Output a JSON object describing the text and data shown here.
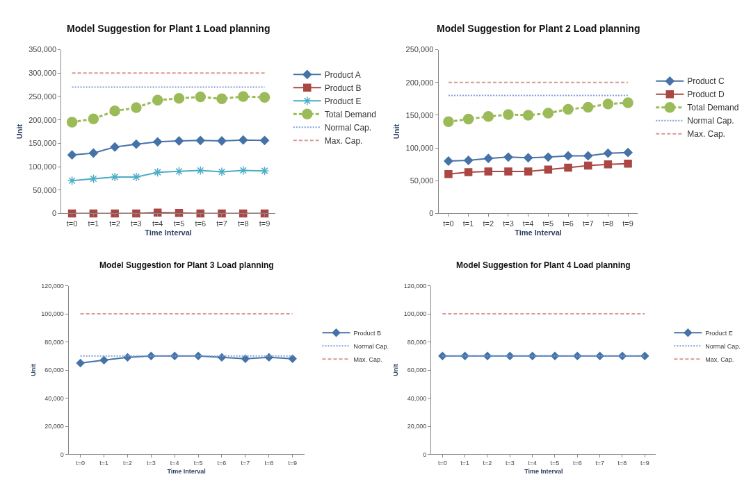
{
  "chart_data": [
    {
      "type": "line",
      "title": "Model Suggestion for Plant 1 Load planning",
      "xlabel": "Time Interval",
      "ylabel": "Unit",
      "categories": [
        "t=0",
        "t=1",
        "t=2",
        "t=3",
        "t=4",
        "t=5",
        "t=6",
        "t=7",
        "t=8",
        "t=9"
      ],
      "ylim": [
        0,
        350000
      ],
      "yticks": [
        {
          "value": 0,
          "label": "0"
        },
        {
          "value": 50000,
          "label": "50,000"
        },
        {
          "value": 100000,
          "label": "100,000"
        },
        {
          "value": 150000,
          "label": "150,000"
        },
        {
          "value": 200000,
          "label": "200,000"
        },
        {
          "value": 250000,
          "label": "250,000"
        },
        {
          "value": 300000,
          "label": "300,000"
        },
        {
          "value": 350000,
          "label": "350,000"
        }
      ],
      "grid": false,
      "legend": "right",
      "series": [
        {
          "name": "Product A",
          "color": "#4572a7",
          "marker": "diamond",
          "line_style": "solid",
          "values": [
            125000,
            129000,
            142000,
            148000,
            153000,
            155000,
            156000,
            155000,
            157000,
            156000
          ]
        },
        {
          "name": "Product B",
          "color": "#aa4643",
          "marker": "square",
          "line_style": "solid",
          "values": [
            0,
            0,
            0,
            0,
            2000,
            1000,
            0,
            0,
            0,
            0
          ]
        },
        {
          "name": "Product E",
          "color": "#4bacc6",
          "marker": "cross",
          "line_style": "solid",
          "values": [
            70000,
            74000,
            78000,
            78000,
            88000,
            90000,
            92000,
            89000,
            92000,
            91000
          ]
        },
        {
          "name": "Total Demand",
          "color": "#9bbb59",
          "marker": "circle",
          "line_style": "dashed",
          "values": [
            195000,
            202000,
            219000,
            226000,
            242000,
            246000,
            249000,
            245000,
            250000,
            248000
          ]
        },
        {
          "name": "Normal Cap.",
          "color": "#7f9fd8",
          "marker": "none",
          "line_style": "dotted",
          "values": [
            270000,
            270000,
            270000,
            270000,
            270000,
            270000,
            270000,
            270000,
            270000,
            270000
          ]
        },
        {
          "name": "Max. Cap.",
          "color": "#d99694",
          "marker": "none",
          "line_style": "dashed",
          "values": [
            300000,
            300000,
            300000,
            300000,
            300000,
            300000,
            300000,
            300000,
            300000,
            300000
          ]
        }
      ]
    },
    {
      "type": "line",
      "title": "Model Suggestion for Plant 2 Load planning",
      "xlabel": "Time Interval",
      "ylabel": "Unit",
      "categories": [
        "t=0",
        "t=1",
        "t=2",
        "t=3",
        "t=4",
        "t=5",
        "t=6",
        "t=7",
        "t=8",
        "t=9"
      ],
      "ylim": [
        0,
        250000
      ],
      "yticks": [
        {
          "value": 0,
          "label": "0"
        },
        {
          "value": 50000,
          "label": "50,000"
        },
        {
          "value": 100000,
          "label": "100,000"
        },
        {
          "value": 150000,
          "label": "150,000"
        },
        {
          "value": 200000,
          "label": "200,000"
        },
        {
          "value": 250000,
          "label": "250,000"
        }
      ],
      "grid": false,
      "legend": "right",
      "series": [
        {
          "name": "Product C",
          "color": "#4572a7",
          "marker": "diamond",
          "line_style": "solid",
          "values": [
            80000,
            81000,
            84000,
            86000,
            85000,
            86000,
            88000,
            88000,
            92000,
            93000
          ]
        },
        {
          "name": "Product D",
          "color": "#aa4643",
          "marker": "square",
          "line_style": "solid",
          "values": [
            60000,
            63000,
            64000,
            64000,
            64000,
            67000,
            70000,
            73000,
            75000,
            76000
          ]
        },
        {
          "name": "Total Demand",
          "color": "#9bbb59",
          "marker": "circle",
          "line_style": "dashed",
          "values": [
            140000,
            144000,
            148000,
            151000,
            150000,
            153000,
            159000,
            162000,
            167000,
            169000
          ]
        },
        {
          "name": "Normal Cap.",
          "color": "#7f9fd8",
          "marker": "none",
          "line_style": "dotted",
          "values": [
            180000,
            180000,
            180000,
            180000,
            180000,
            180000,
            180000,
            180000,
            180000,
            180000
          ]
        },
        {
          "name": "Max. Cap.",
          "color": "#d99694",
          "marker": "none",
          "line_style": "dashed",
          "values": [
            200000,
            200000,
            200000,
            200000,
            200000,
            200000,
            200000,
            200000,
            200000,
            200000
          ]
        }
      ]
    },
    {
      "type": "line",
      "title": "Model Suggestion for Plant 3 Load planning",
      "xlabel": "Time Interval",
      "ylabel": "Unit",
      "categories": [
        "t=0",
        "t=1",
        "t=2",
        "t=3",
        "t=4",
        "t=5",
        "t=6",
        "t=7",
        "t=8",
        "t=9"
      ],
      "ylim": [
        0,
        120000
      ],
      "yticks": [
        {
          "value": 0,
          "label": "0"
        },
        {
          "value": 20000,
          "label": "20,000"
        },
        {
          "value": 40000,
          "label": "40,000"
        },
        {
          "value": 60000,
          "label": "60,000"
        },
        {
          "value": 80000,
          "label": "80,000"
        },
        {
          "value": 100000,
          "label": "100,000"
        },
        {
          "value": 120000,
          "label": "120,000"
        }
      ],
      "grid": false,
      "legend": "right",
      "series": [
        {
          "name": "Product B",
          "color": "#4572a7",
          "marker": "diamond",
          "line_style": "solid",
          "values": [
            65000,
            67000,
            69000,
            70000,
            70000,
            70000,
            69000,
            68000,
            69000,
            68000
          ]
        },
        {
          "name": "Normal Cap.",
          "color": "#7f9fd8",
          "marker": "none",
          "line_style": "dotted",
          "values": [
            70000,
            70000,
            70000,
            70000,
            70000,
            70000,
            70000,
            70000,
            70000,
            70000
          ]
        },
        {
          "name": "Max. Cap.",
          "color": "#d99694",
          "marker": "none",
          "line_style": "dashed",
          "values": [
            100000,
            100000,
            100000,
            100000,
            100000,
            100000,
            100000,
            100000,
            100000,
            100000
          ]
        }
      ]
    },
    {
      "type": "line",
      "title": "Model Suggestion for Plant 4 Load planning",
      "xlabel": "Time Interval",
      "ylabel": "Unit",
      "categories": [
        "t=0",
        "t=1",
        "t=2",
        "t=3",
        "t=4",
        "t=5",
        "t=6",
        "t=7",
        "t=8",
        "t=9"
      ],
      "ylim": [
        0,
        120000
      ],
      "yticks": [
        {
          "value": 0,
          "label": "0"
        },
        {
          "value": 20000,
          "label": "20,000"
        },
        {
          "value": 40000,
          "label": "40,000"
        },
        {
          "value": 60000,
          "label": "60,000"
        },
        {
          "value": 80000,
          "label": "80,000"
        },
        {
          "value": 100000,
          "label": "100,000"
        },
        {
          "value": 120000,
          "label": "120,000"
        }
      ],
      "grid": false,
      "legend": "right",
      "series": [
        {
          "name": "Product E",
          "color": "#4572a7",
          "marker": "diamond",
          "line_style": "solid",
          "values": [
            70000,
            70000,
            70000,
            70000,
            70000,
            70000,
            70000,
            70000,
            70000,
            70000
          ]
        },
        {
          "name": "Normal Cap.",
          "color": "#7f9fd8",
          "marker": "none",
          "line_style": "dotted",
          "values": [
            70000,
            70000,
            70000,
            70000,
            70000,
            70000,
            70000,
            70000,
            70000,
            70000
          ]
        },
        {
          "name": "Max. Cap.",
          "color": "#d99694",
          "marker": "none",
          "line_style": "dashed",
          "values": [
            100000,
            100000,
            100000,
            100000,
            100000,
            100000,
            100000,
            100000,
            100000,
            100000
          ]
        }
      ]
    }
  ]
}
